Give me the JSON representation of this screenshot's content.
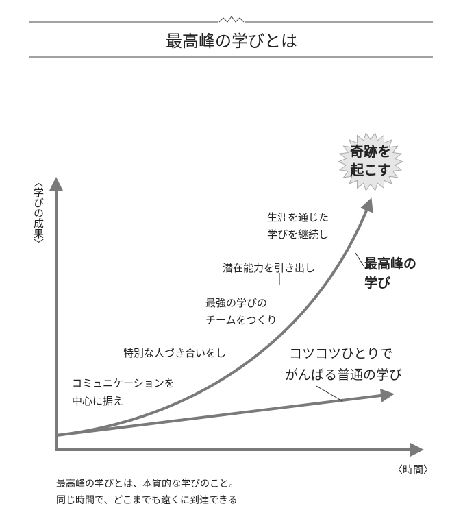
{
  "header": {
    "title": "最高峰の学びとは"
  },
  "axes": {
    "y_label": "〈学びの成果〉",
    "x_label": "〈時間〉"
  },
  "burst": {
    "lines": [
      "奇跡を",
      "起こす"
    ]
  },
  "steps": {
    "lifelong": [
      "生涯を通じた",
      "学びを継続し"
    ],
    "potential": "潜在能力を引き出し",
    "team": [
      "最強の学びの",
      "チームをつくり"
    ],
    "relations": "特別な人づき合いをし",
    "communication": [
      "コミュニケーションを",
      "中心に据え"
    ]
  },
  "best_label": [
    "最高峰の",
    "学び"
  ],
  "normal_label": [
    "コツコツひとりで",
    "がんばる普通の学び"
  ],
  "footer": [
    "最高峰の学びとは、本質的な学びのこと。",
    "同じ時間で、どこまでも遠くに到達できる"
  ]
}
